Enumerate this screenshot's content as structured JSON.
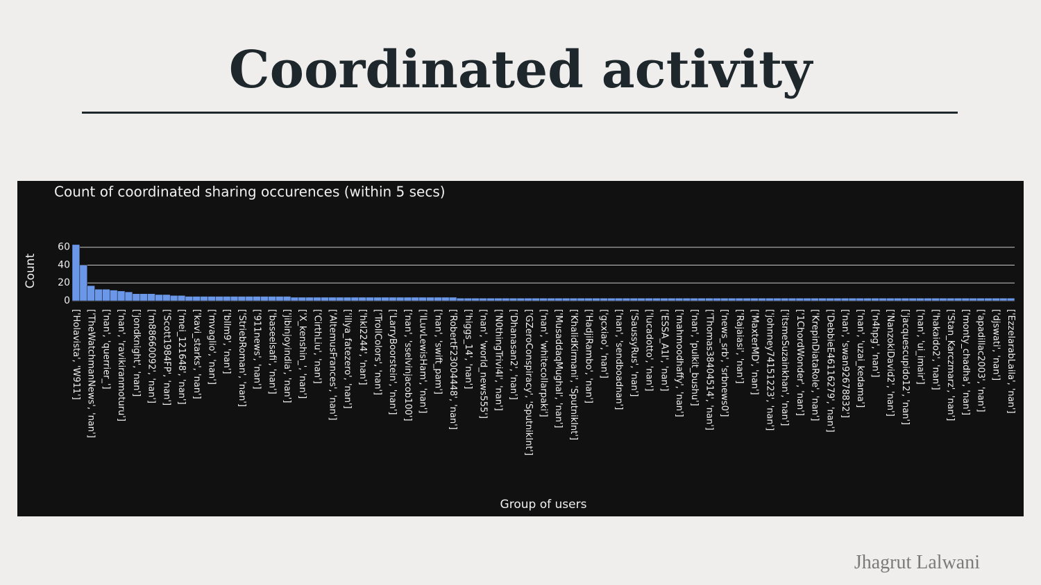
{
  "slide": {
    "title": "Coordinated activity",
    "author": "Jhagrut Lalwani"
  },
  "chart_data": {
    "type": "bar",
    "title": "Count of coordinated sharing occurences (within 5 secs)",
    "x_label": "Group of users",
    "y_label": "Count",
    "color": "#6a97e8",
    "grid": true,
    "ylim": [
      0,
      66
    ],
    "yticks": [
      0,
      20,
      40,
      60
    ],
    "categories": [
      "['Holavista', 'W911']",
      null,
      "['TheWatchmanNews', 'nan']",
      null,
      "['nan', 'querrier_']",
      null,
      "['nan', 'ravikiranmoturu']",
      null,
      "['jondknight', 'nan']",
      null,
      "['m88660092', 'nan']",
      null,
      "['Scott1984FP', 'nan']",
      null,
      "['mei_121648', 'nan']",
      null,
      "['kavi_starks', 'nan']",
      null,
      "['mvaglio', 'nan']",
      null,
      "['bllm9', 'nan']",
      null,
      "['StriebRoman', 'nan']",
      null,
      "['911news', 'nan']",
      null,
      "['baseelsafi', 'nan']",
      null,
      "['jibinjoyindia', 'nan']",
      null,
      "['X_kenshin_', 'nan']",
      null,
      "['CirthLiu', 'nan']",
      null,
      "['AltemusFrances', 'nan']",
      null,
      "['illya_fatezero', 'nan']",
      null,
      "['hkl2244', 'nan']",
      null,
      "['TrollColors', 'nan']",
      null,
      "['LarryBoorstein', 'nan']",
      null,
      "['nan', 'sselvinjacob100']",
      null,
      "['ILuvLewisHam', 'nan']",
      null,
      "['nan', 'swift_pam']",
      null,
      "['RobertF23004448', 'nan']",
      null,
      "['higgs_14', 'nan']",
      null,
      "['nan', 'world_news555']",
      null,
      "['N0thingTrivi4l', 'nan']",
      null,
      "['Dhanasan2', 'nan']",
      null,
      "['GZeroConspiracy', 'SputnikInt']",
      null,
      "['nan', 'whitecollarpaki']",
      null,
      "['MusaddaqMughal', 'nan']",
      null,
      "['KhalidKirmani', 'SputnikInt']",
      null,
      "['HadjiRambo', 'nan']",
      null,
      "['gcxiao', 'nan']",
      null,
      "['nan', 'sendboadnan']",
      null,
      "['SaussyRus', 'nan']",
      null,
      "['lucadotto', 'nan']",
      null,
      "['ESSA_A1I', 'nan']",
      null,
      "['mahmoodhaffy', 'nan']",
      null,
      "['nan', 'pulkit_bushu']",
      null,
      "['Thomas38404514', 'nan']",
      null,
      "['news_srb', 'srbnews0']",
      null,
      "['Rajaiasi', 'nan']",
      null,
      "['MaxterMD', 'nan']",
      null,
      "['johnney74151223', 'nan']",
      null,
      "['itsmeSuzainkhan', 'nan']",
      null,
      "['1ChordWonder', 'nan']",
      null,
      "['KrepinDiataRole', 'nan']",
      null,
      "['DebbieE46116279', 'nan']",
      null,
      "['nan', 'swan92678832']",
      null,
      "['nan', 'uzai_kedama']",
      null,
      "['n4hpg', 'nan']",
      null,
      "['NanzokiDavid2', 'nan']",
      null,
      "['jacquescupido12', 'nan']",
      null,
      "['nan', 'ui_imair']",
      null,
      "['hakaido2', 'nan']",
      null,
      "['Stan_Karczmarz', 'nan']",
      null,
      "['monty_chadha', 'nan']",
      null,
      "['apadillac2003', 'nan']",
      null,
      "['djswati', 'nan']",
      null,
      "['EzzelarabLaila', 'nan']"
    ],
    "values": [
      63,
      40,
      17,
      13,
      13,
      12,
      11,
      10,
      8,
      8,
      8,
      7,
      7,
      6,
      6,
      5,
      5,
      5,
      5,
      5,
      5,
      5,
      5,
      5,
      5,
      5,
      5,
      5,
      5,
      4,
      4,
      4,
      4,
      4,
      4,
      4,
      4,
      4,
      4,
      4,
      4,
      4,
      4,
      4,
      4,
      4,
      4,
      4,
      4,
      4,
      4,
      3,
      3,
      3,
      3,
      3,
      3,
      3,
      3,
      3,
      3,
      3,
      3,
      3,
      3,
      3,
      3,
      3,
      3,
      3,
      3,
      3,
      3,
      3,
      3,
      3,
      3,
      3,
      3,
      3,
      3,
      3,
      3,
      3,
      3,
      3,
      3,
      3,
      3,
      3,
      3,
      3,
      3,
      3,
      3,
      3,
      3,
      3,
      3,
      3,
      3,
      3,
      3,
      3,
      3,
      3,
      3,
      3,
      3,
      3,
      3,
      3,
      3,
      3,
      3,
      3,
      3,
      3,
      3,
      3,
      3,
      3,
      3,
      3,
      3
    ]
  }
}
